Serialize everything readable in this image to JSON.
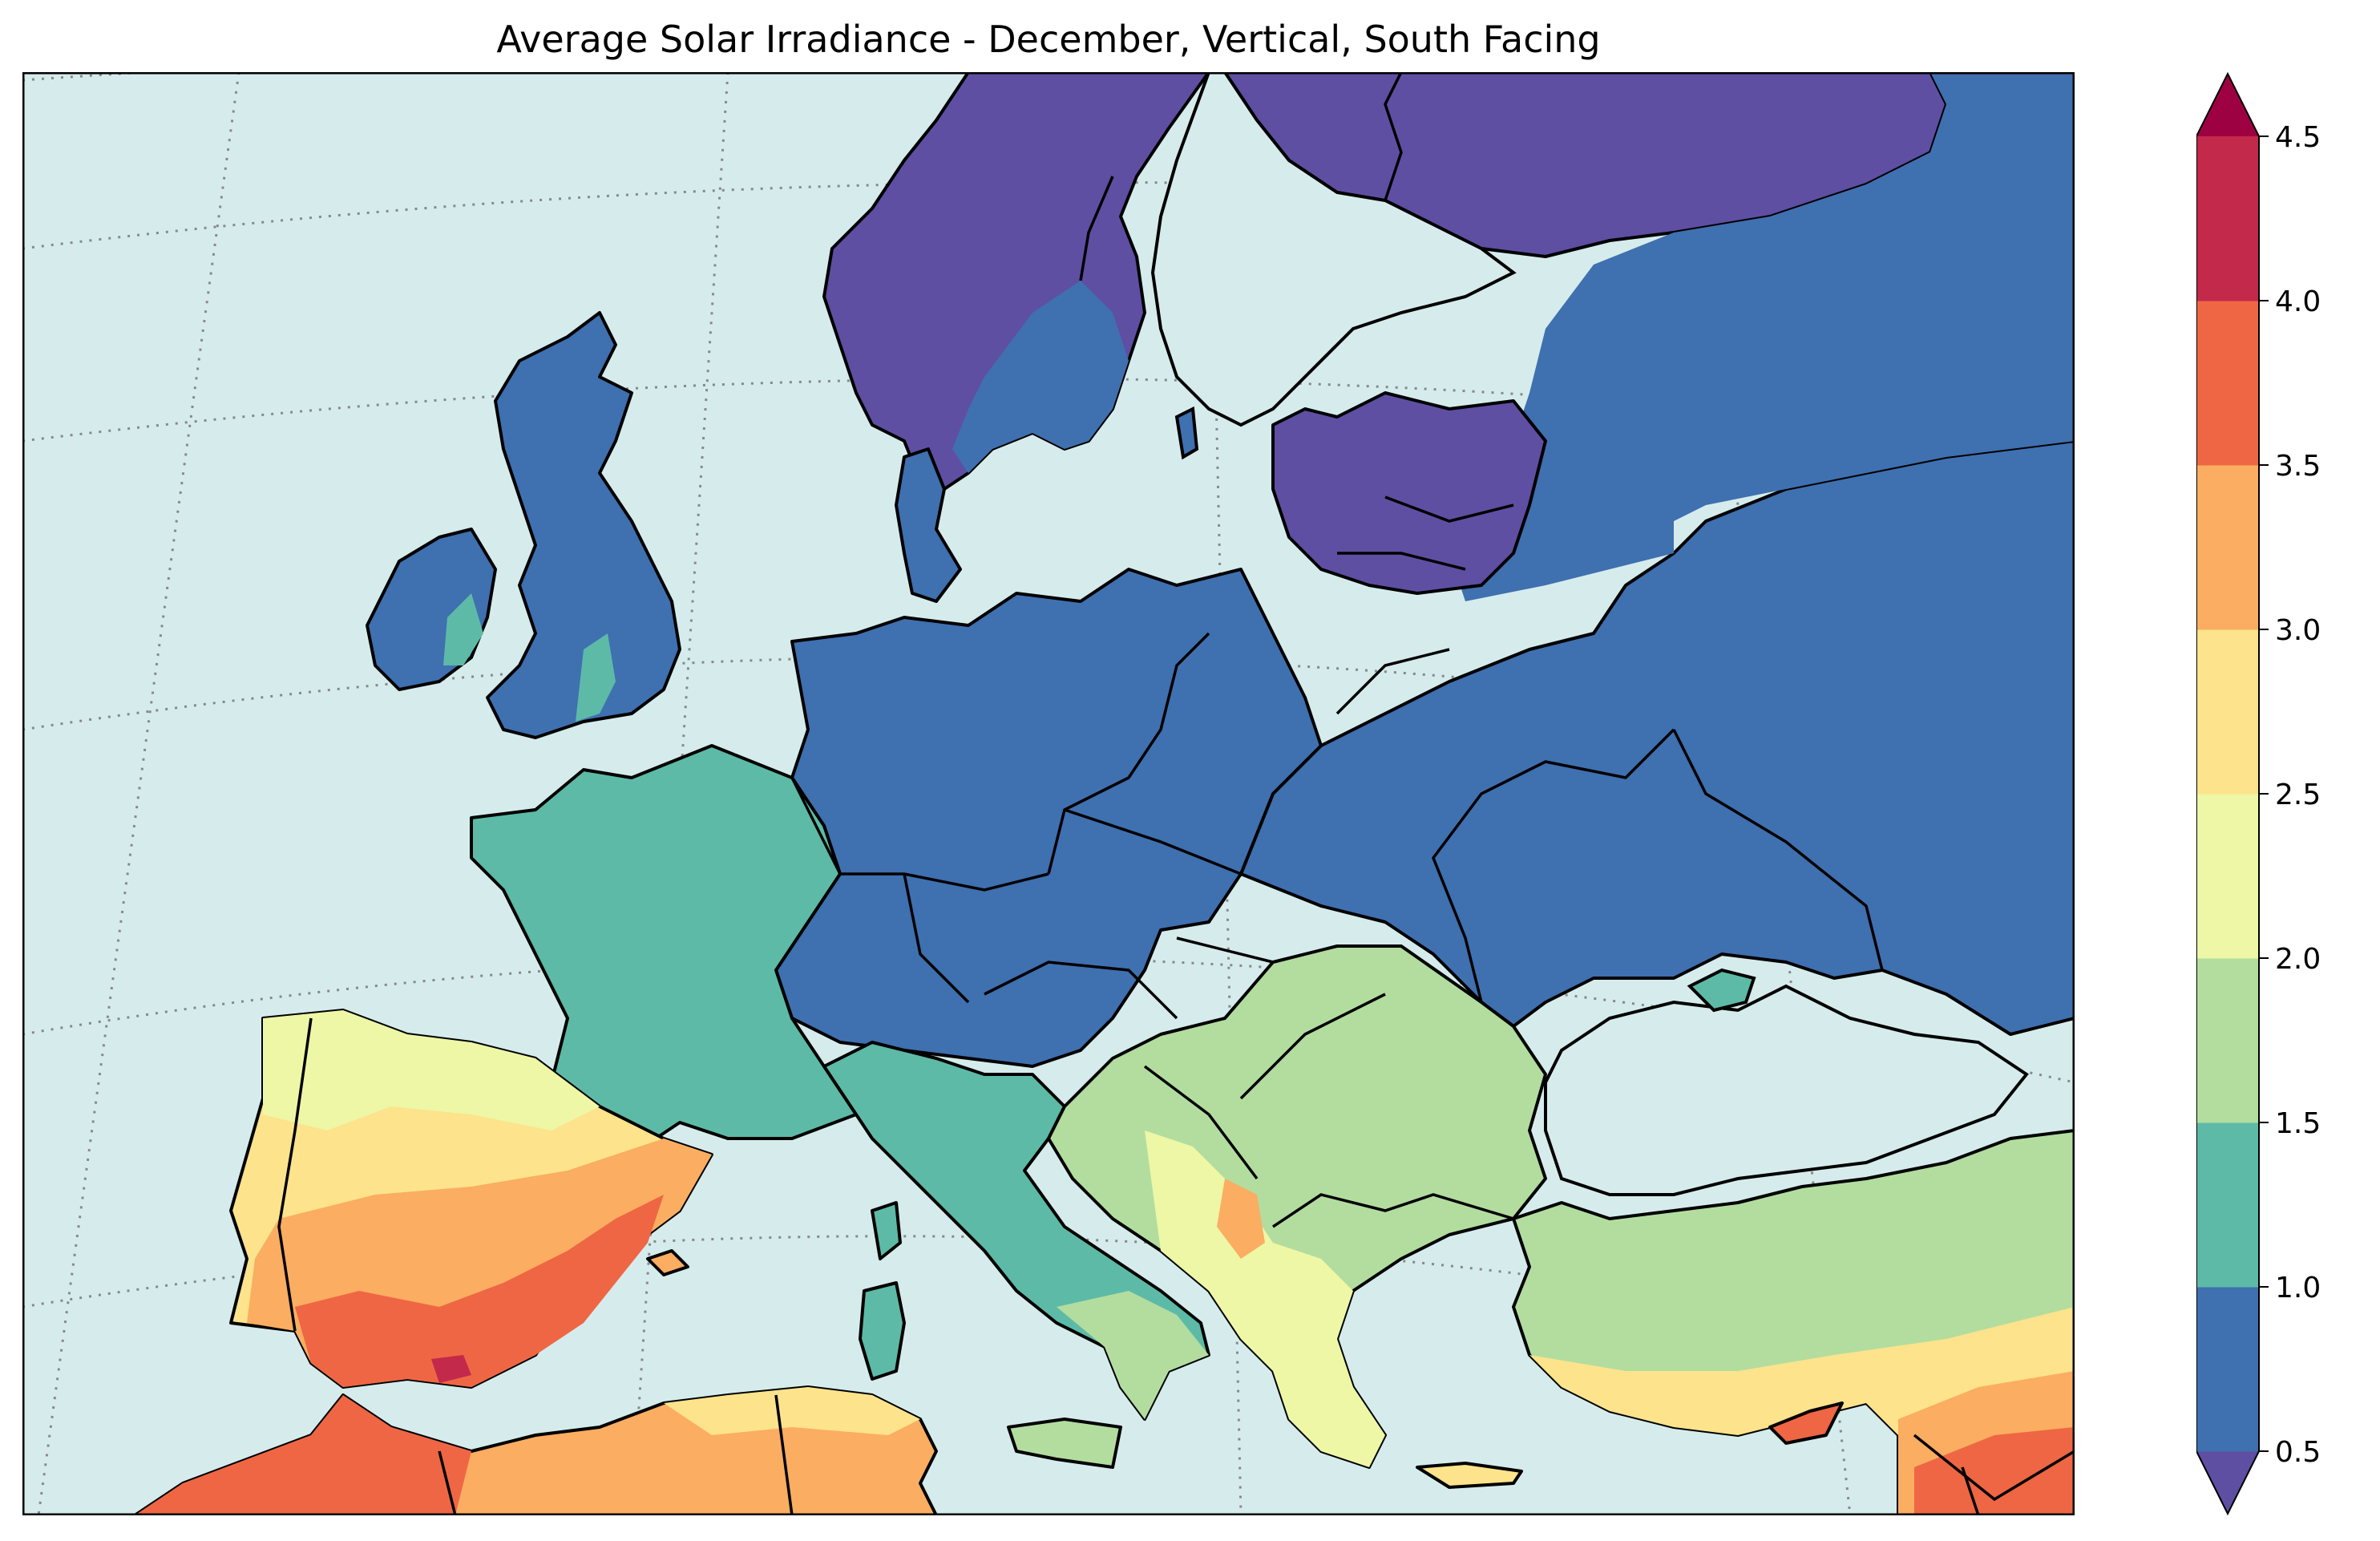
{
  "title": "Average Solar Irradiance - December, Vertical, South Facing",
  "colors": {
    "sea": "#d6ecec",
    "c_lt_0_5": "#5e4fa2",
    "c_0_5_1_0": "#3f70b0",
    "c_1_0_1_5": "#5dbaa7",
    "c_1_5_2_0": "#b2dd9f",
    "c_2_0_2_5": "#edf7a6",
    "c_2_5_3_0": "#fde38c",
    "c_3_0_3_5": "#fbad61",
    "c_3_5_4_0": "#ef6644",
    "c_4_0_4_5": "#c2294b",
    "c_gt_4_5": "#9e0142",
    "gridline": "#888888",
    "coastline": "#000000"
  },
  "colorbar": {
    "ticks": [
      "0.5",
      "1.0",
      "1.5",
      "2.0",
      "2.5",
      "3.0",
      "3.5",
      "4.0",
      "4.5"
    ],
    "levels": [
      0.5,
      1.0,
      1.5,
      2.0,
      2.5,
      3.0,
      3.5,
      4.0,
      4.5
    ],
    "extend": "both"
  }
}
